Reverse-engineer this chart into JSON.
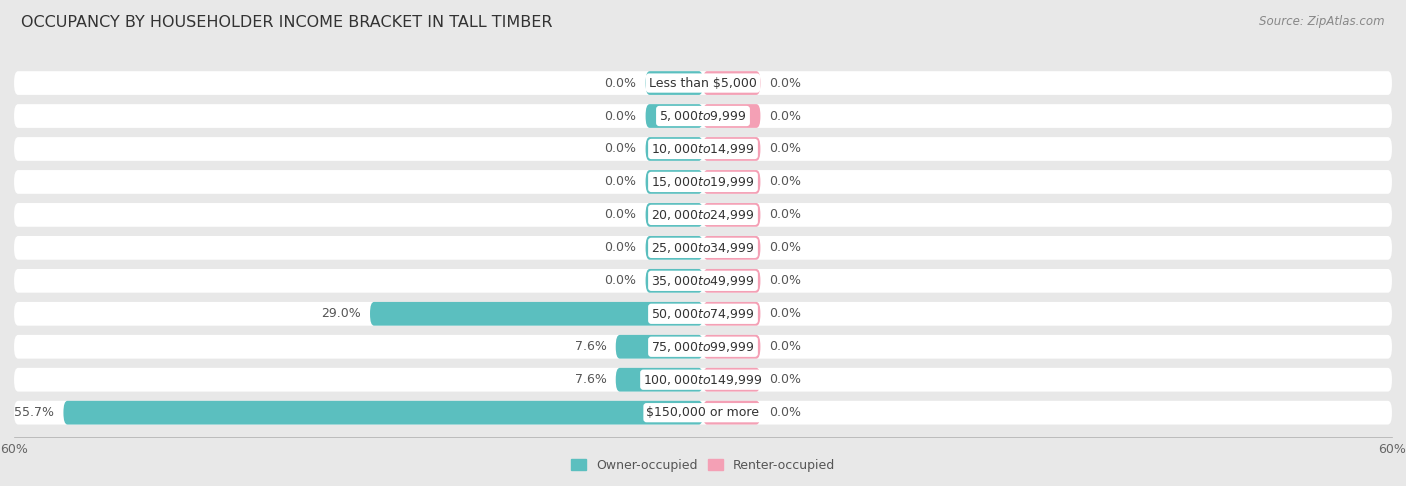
{
  "title": "OCCUPANCY BY HOUSEHOLDER INCOME BRACKET IN TALL TIMBER",
  "source": "Source: ZipAtlas.com",
  "categories": [
    "Less than $5,000",
    "$5,000 to $9,999",
    "$10,000 to $14,999",
    "$15,000 to $19,999",
    "$20,000 to $24,999",
    "$25,000 to $34,999",
    "$35,000 to $49,999",
    "$50,000 to $74,999",
    "$75,000 to $99,999",
    "$100,000 to $149,999",
    "$150,000 or more"
  ],
  "owner_values": [
    0.0,
    0.0,
    0.0,
    0.0,
    0.0,
    0.0,
    0.0,
    29.0,
    7.6,
    7.6,
    55.7
  ],
  "renter_values": [
    0.0,
    0.0,
    0.0,
    0.0,
    0.0,
    0.0,
    0.0,
    0.0,
    0.0,
    0.0,
    0.0
  ],
  "owner_color": "#5BBFBF",
  "renter_color": "#F4A0B5",
  "min_segment": 5.0,
  "xlim": 60.0,
  "bg_color": "#e8e8e8",
  "bar_fill_color": "#ffffff",
  "title_fontsize": 11.5,
  "source_fontsize": 8.5,
  "label_fontsize": 9,
  "category_fontsize": 9,
  "legend_fontsize": 9,
  "axis_label_fontsize": 9
}
